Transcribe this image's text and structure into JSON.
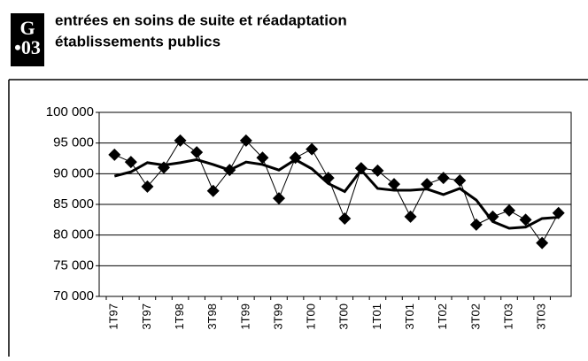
{
  "header": {
    "badge_letter": "G",
    "badge_number": "•03",
    "title_line1": "entrées en soins de suite et réadaptation",
    "title_line2": "établissements publics"
  },
  "chart_data": {
    "type": "line",
    "categories": [
      "1T97",
      null,
      "3T97",
      null,
      "1T98",
      null,
      "3T98",
      null,
      "1T99",
      null,
      "3T99",
      null,
      "1T00",
      null,
      "3T00",
      null,
      "1T01",
      null,
      "3T01",
      null,
      "1T02",
      null,
      "3T02",
      null,
      "1T03",
      null,
      "3T03",
      null
    ],
    "series": [
      {
        "color": "#000000",
        "marker": "diamond",
        "values": [
          93100,
          91900,
          87900,
          91000,
          95400,
          93500,
          87200,
          90600,
          95400,
          92600,
          86000,
          92600,
          94000,
          89300,
          82700,
          90900,
          90500,
          88300,
          83000,
          88300,
          89300,
          88900,
          81700,
          83000,
          84000,
          82500,
          78700,
          83600
        ]
      },
      {
        "color": "#000000",
        "marker": "none",
        "values": [
          89600,
          90300,
          91800,
          91400,
          91800,
          92300,
          91500,
          90600,
          91900,
          91500,
          90600,
          92300,
          90800,
          88400,
          87100,
          90600,
          87600,
          87300,
          87300,
          87500,
          86600,
          87600,
          85700,
          82200,
          81100,
          81300,
          82700,
          82900
        ]
      }
    ],
    "ylim": [
      70000,
      100000
    ],
    "yticks": [
      {
        "value": 70000,
        "label": "70 000"
      },
      {
        "value": 75000,
        "label": "75 000"
      },
      {
        "value": 80000,
        "label": "80 000"
      },
      {
        "value": 85000,
        "label": "85 000"
      },
      {
        "value": 90000,
        "label": "90 000"
      },
      {
        "value": 95000,
        "label": "95 000"
      },
      {
        "value": 100000,
        "label": "100 000"
      }
    ],
    "grid": true
  }
}
